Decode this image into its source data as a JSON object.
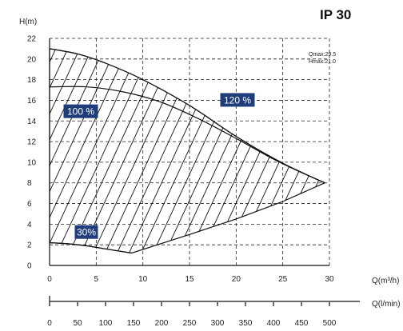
{
  "chart_data": {
    "type": "line",
    "title": "IP 30",
    "ylabel": "H(m)",
    "xlabel": "Q(m³/h)",
    "xlabel_secondary": "Q(l/min)",
    "xlim": [
      0,
      30
    ],
    "ylim": [
      0,
      22
    ],
    "x_ticks": [
      "0",
      "5",
      "10",
      "15",
      "20",
      "25",
      "30"
    ],
    "y_ticks": [
      "0",
      "2",
      "4",
      "6",
      "8",
      "10",
      "12",
      "14",
      "16",
      "18",
      "20",
      "22"
    ],
    "secondary_ticks": [
      "0",
      "50",
      "100",
      "150",
      "200",
      "250",
      "300",
      "350",
      "400",
      "450",
      "500"
    ],
    "grid": true,
    "info": {
      "qmax": "Qmax:29.5",
      "hmax": "Hmax:21.0"
    },
    "curve_labels": [
      {
        "text": "100 %",
        "color": "#1f3d7a"
      },
      {
        "text": "120 %",
        "color": "#1f3d7a"
      },
      {
        "text": "30%",
        "color": "#1f3d7a"
      }
    ],
    "series": [
      {
        "name": "120 %",
        "x": [
          0,
          3,
          6,
          10,
          15,
          20,
          25,
          29.5
        ],
        "y": [
          21.0,
          20.5,
          19.6,
          18.0,
          15.5,
          12.5,
          9.9,
          8.0
        ]
      },
      {
        "name": "100 %",
        "x": [
          0,
          4,
          8,
          12,
          16,
          20,
          24,
          27,
          29.5
        ],
        "y": [
          17.3,
          17.3,
          16.8,
          15.8,
          14.2,
          12.3,
          10.3,
          9.0,
          8.0
        ]
      },
      {
        "name": "30%",
        "x": [
          0,
          2,
          4,
          6,
          8.8
        ],
        "y": [
          2.2,
          2.1,
          1.9,
          1.6,
          1.2
        ]
      }
    ],
    "envelope_right": {
      "x": [
        8.8,
        15,
        20,
        25,
        29.5
      ],
      "y": [
        1.2,
        3.0,
        4.5,
        6.2,
        8.0
      ]
    }
  }
}
